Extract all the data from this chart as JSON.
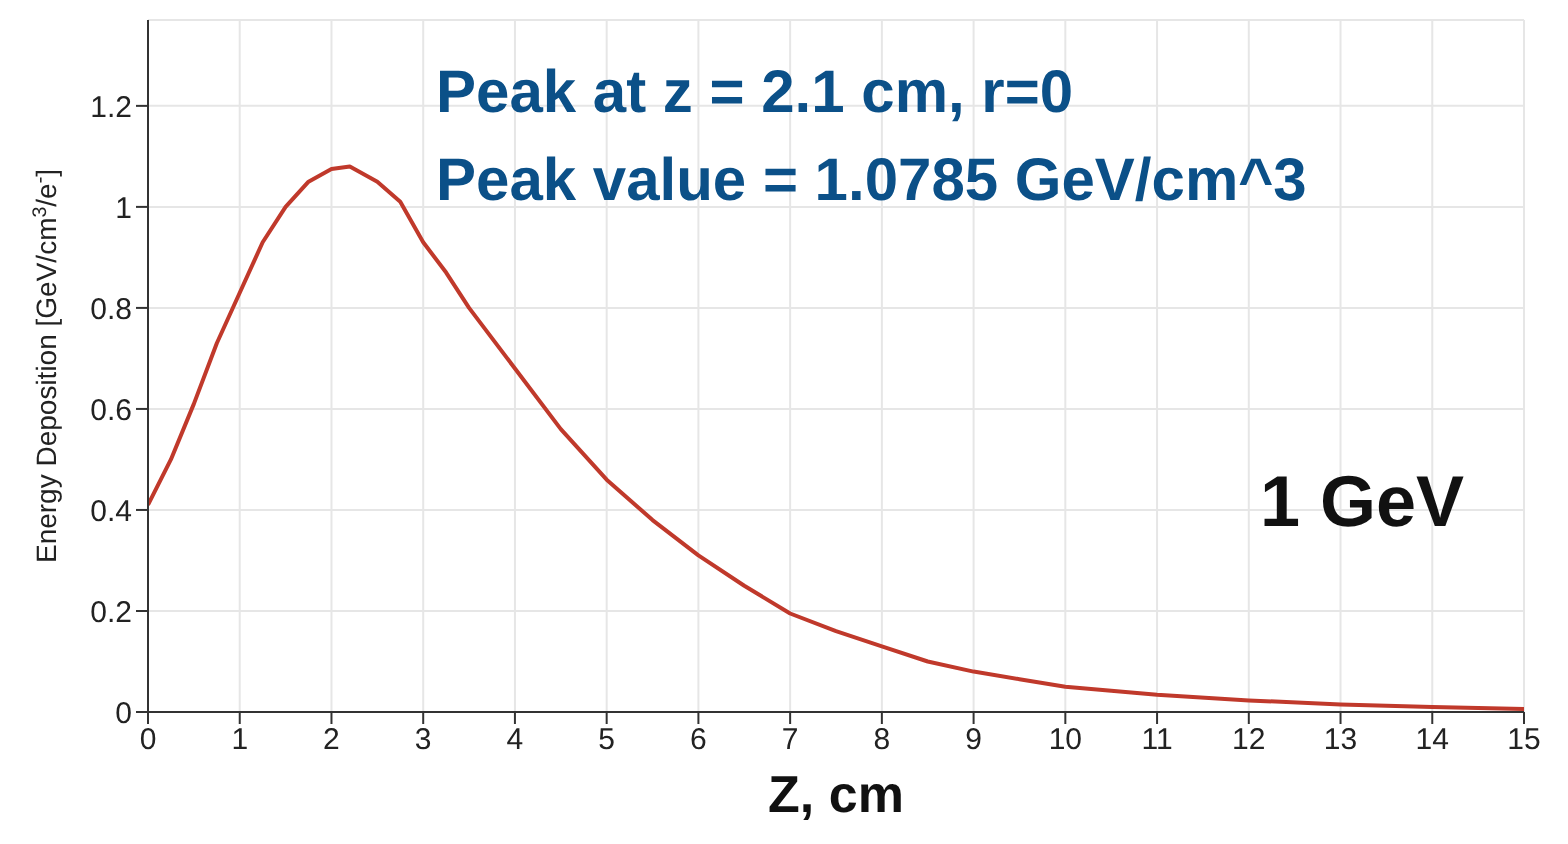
{
  "chart_data": {
    "type": "line",
    "xlabel": "Z, cm",
    "ylabel": "Energy Deposition [GeV/cm$^{3}$/e$^{-}$]",
    "annotations": [
      "Peak at z = 2.1 cm, r=0",
      "Peak value = 1.0785 GeV/cm^3",
      "1 GeV"
    ],
    "x": [
      0,
      0.25,
      0.5,
      0.75,
      1,
      1.25,
      1.5,
      1.75,
      2,
      2.2,
      2.5,
      2.75,
      3,
      3.25,
      3.5,
      4,
      4.5,
      5,
      5.5,
      6,
      6.5,
      7,
      7.5,
      8,
      8.5,
      9,
      9.5,
      10,
      11,
      12,
      13,
      14,
      15
    ],
    "series": [
      {
        "color": "#c0392b",
        "values": [
          0.41,
          0.5,
          0.61,
          0.73,
          0.83,
          0.93,
          1.0,
          1.05,
          1.075,
          1.08,
          1.05,
          1.01,
          0.93,
          0.87,
          0.8,
          0.68,
          0.56,
          0.46,
          0.38,
          0.31,
          0.25,
          0.195,
          0.16,
          0.13,
          0.1,
          0.08,
          0.065,
          0.05,
          0.034,
          0.023,
          0.015,
          0.01,
          0.006
        ]
      }
    ],
    "xlim": [
      0,
      15
    ],
    "xticks": [
      0,
      1,
      2,
      3,
      4,
      5,
      6,
      7,
      8,
      9,
      10,
      11,
      12,
      13,
      14,
      15
    ],
    "ylim": [
      0,
      1.37
    ],
    "yticks": [
      0,
      0.2,
      0.4,
      0.6,
      0.8,
      1,
      1.2
    ],
    "grid": true,
    "marker": "none",
    "line_style": "solid"
  }
}
